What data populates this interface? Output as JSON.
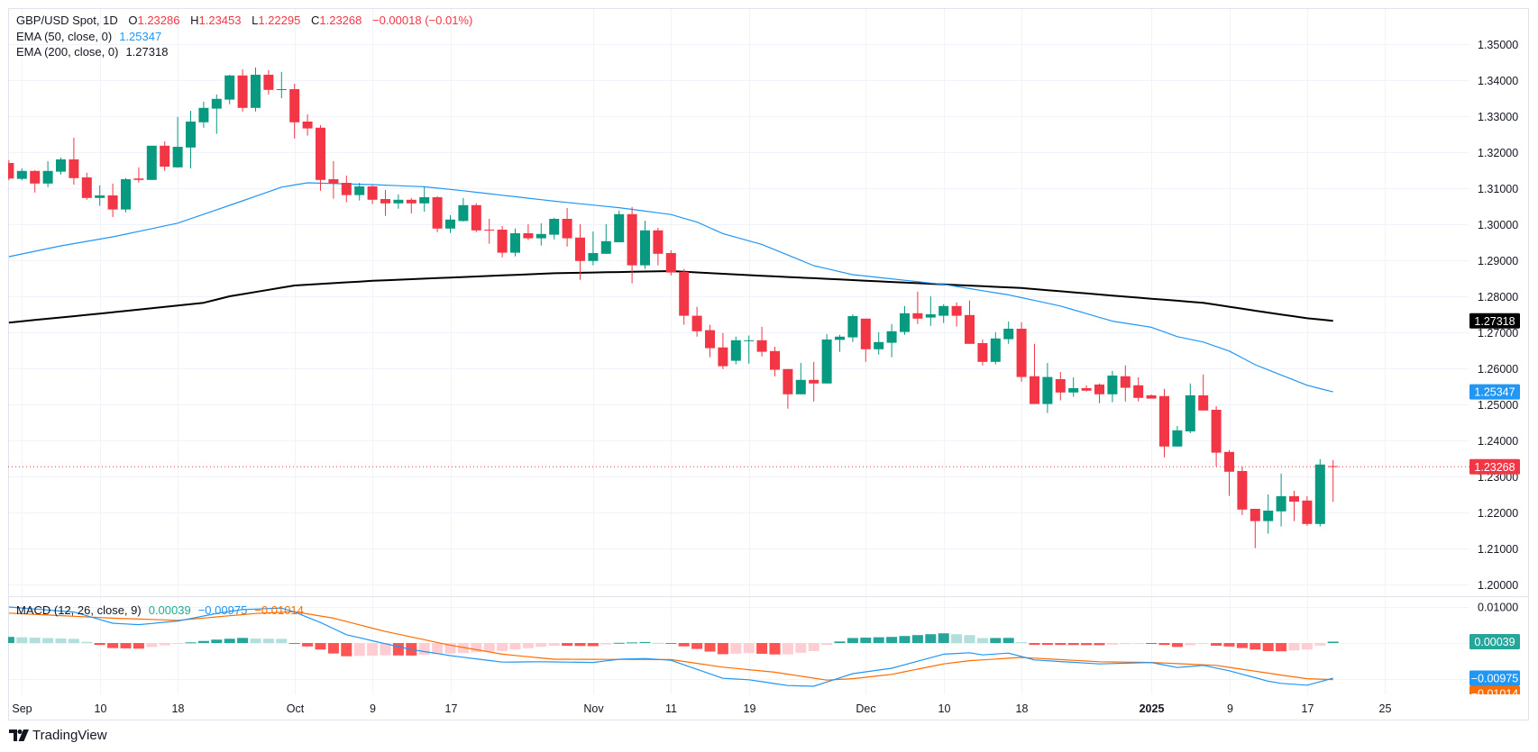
{
  "header": {
    "symbol": "GBP/USD Spot",
    "interval": "1D",
    "open_label": "O",
    "open": "1.23286",
    "high_label": "H",
    "high": "1.23453",
    "low_label": "L",
    "low": "1.22295",
    "close_label": "C",
    "close": "1.23268",
    "change": "−0.00018 (−0.01%)"
  },
  "indicators": {
    "ema50": {
      "label": "EMA (50, close, 0)",
      "value": "1.25347"
    },
    "ema200": {
      "label": "EMA (200, close, 0)",
      "value": "1.27318"
    },
    "macd": {
      "label": "MACD (12, 26, close, 9)",
      "histogram": "0.00039",
      "macd": "−0.00975",
      "signal": "−0.01014"
    }
  },
  "branding": "TradingView",
  "colors": {
    "up": "#089981",
    "down": "#F23645",
    "ema50": "#2196F3",
    "ema200": "#000000",
    "macd": "#2196F3",
    "signal": "#FF6D00",
    "hist_up_strong": "#26A69A",
    "hist_up_weak": "#B2DFDB",
    "hist_down_strong": "#FF5252",
    "hist_down_weak": "#FFCDD2",
    "grid": "#F0F3FA",
    "text": "#131722"
  },
  "chart_data": {
    "type": "candlestick",
    "title": "GBP/USD Spot, 1D",
    "price_axis": {
      "ylim": [
        1.2,
        1.35
      ],
      "ticks": [
        "1.35000",
        "1.34000",
        "1.33000",
        "1.32000",
        "1.31000",
        "1.30000",
        "1.29000",
        "1.28000",
        "1.27000",
        "1.26000",
        "1.25000",
        "1.24000",
        "1.23000",
        "1.22000",
        "1.21000",
        "1.20000"
      ]
    },
    "macd_axis": {
      "ticks": [
        "0.01000"
      ]
    },
    "time_axis": {
      "labels": [
        {
          "text": "Sep",
          "date": "2024-09-02"
        },
        {
          "text": "10",
          "date": "2024-09-10"
        },
        {
          "text": "18",
          "date": "2024-09-18"
        },
        {
          "text": "Oct",
          "date": "2024-10-01"
        },
        {
          "text": "9",
          "date": "2024-10-09"
        },
        {
          "text": "17",
          "date": "2024-10-17"
        },
        {
          "text": "Nov",
          "date": "2024-11-01"
        },
        {
          "text": "11",
          "date": "2024-11-11"
        },
        {
          "text": "19",
          "date": "2024-11-19"
        },
        {
          "text": "Dec",
          "date": "2024-12-02"
        },
        {
          "text": "10",
          "date": "2024-12-10"
        },
        {
          "text": "18",
          "date": "2024-12-18"
        },
        {
          "text": "2025",
          "date": "2025-01-01",
          "bold": true
        },
        {
          "text": "9",
          "date": "2025-01-09"
        },
        {
          "text": "17",
          "date": "2025-01-17"
        },
        {
          "text": "25",
          "date": "2025-01-25"
        }
      ]
    },
    "candles_columns": [
      "date",
      "open",
      "high",
      "low",
      "close"
    ],
    "candles": [
      [
        "2024-08-30",
        1.317,
        1.3178,
        1.3122,
        1.3127
      ],
      [
        "2024-09-02",
        1.3126,
        1.3155,
        1.3122,
        1.3148
      ],
      [
        "2024-09-03",
        1.3148,
        1.315,
        1.3088,
        1.3113
      ],
      [
        "2024-09-04",
        1.3113,
        1.3175,
        1.3103,
        1.3148
      ],
      [
        "2024-09-05",
        1.3146,
        1.3185,
        1.3138,
        1.318
      ],
      [
        "2024-09-06",
        1.318,
        1.324,
        1.311,
        1.3128
      ],
      [
        "2024-09-09",
        1.313,
        1.3143,
        1.3068,
        1.3073
      ],
      [
        "2024-09-10",
        1.3073,
        1.3108,
        1.3051,
        1.308
      ],
      [
        "2024-09-11",
        1.308,
        1.3113,
        1.302,
        1.3041
      ],
      [
        "2024-09-12",
        1.3041,
        1.3128,
        1.3033,
        1.3125
      ],
      [
        "2024-09-13",
        1.3127,
        1.3158,
        1.3116,
        1.3123
      ],
      [
        "2024-09-16",
        1.3123,
        1.3218,
        1.3123,
        1.3218
      ],
      [
        "2024-09-17",
        1.3218,
        1.323,
        1.3148,
        1.316
      ],
      [
        "2024-09-18",
        1.3158,
        1.3298,
        1.3157,
        1.3215
      ],
      [
        "2024-09-19",
        1.3213,
        1.3315,
        1.3155,
        1.3285
      ],
      [
        "2024-09-20",
        1.3283,
        1.334,
        1.3268,
        1.3323
      ],
      [
        "2024-09-23",
        1.3321,
        1.336,
        1.3251,
        1.3348
      ],
      [
        "2024-09-24",
        1.3346,
        1.3415,
        1.3333,
        1.3413
      ],
      [
        "2024-09-25",
        1.3413,
        1.343,
        1.3313,
        1.3323
      ],
      [
        "2024-09-26",
        1.3323,
        1.3435,
        1.3313,
        1.3415
      ],
      [
        "2024-09-27",
        1.3415,
        1.3428,
        1.336,
        1.3373
      ],
      [
        "2024-09-30",
        1.3373,
        1.3423,
        1.335,
        1.3375
      ],
      [
        "2024-10-01",
        1.3375,
        1.339,
        1.3238,
        1.3283
      ],
      [
        "2024-10-02",
        1.3285,
        1.3305,
        1.3246,
        1.3266
      ],
      [
        "2024-10-03",
        1.3268,
        1.3275,
        1.3093,
        1.3123
      ],
      [
        "2024-10-04",
        1.3125,
        1.3175,
        1.3071,
        1.3113
      ],
      [
        "2024-10-07",
        1.3115,
        1.3135,
        1.3061,
        1.3081
      ],
      [
        "2024-10-08",
        1.3081,
        1.3115,
        1.3066,
        1.3105
      ],
      [
        "2024-10-09",
        1.3105,
        1.3108,
        1.3056,
        1.3068
      ],
      [
        "2024-10-10",
        1.307,
        1.3095,
        1.3023,
        1.3058
      ],
      [
        "2024-10-11",
        1.3058,
        1.3083,
        1.3043,
        1.3068
      ],
      [
        "2024-10-14",
        1.3068,
        1.3073,
        1.303,
        1.3058
      ],
      [
        "2024-10-15",
        1.3058,
        1.3104,
        1.3035,
        1.3075
      ],
      [
        "2024-10-16",
        1.3075,
        1.3078,
        1.2978,
        1.2988
      ],
      [
        "2024-10-17",
        1.2988,
        1.3025,
        1.2976,
        1.3013
      ],
      [
        "2024-10-18",
        1.3009,
        1.3073,
        1.3008,
        1.3053
      ],
      [
        "2024-10-21",
        1.3053,
        1.3058,
        1.2978,
        1.2983
      ],
      [
        "2024-10-22",
        1.2985,
        1.3015,
        1.2946,
        1.2983
      ],
      [
        "2024-10-23",
        1.2985,
        1.2995,
        1.2908,
        1.2921
      ],
      [
        "2024-10-24",
        1.2921,
        1.2988,
        1.2911,
        1.2975
      ],
      [
        "2024-10-25",
        1.2975,
        1.3,
        1.2956,
        1.2961
      ],
      [
        "2024-10-28",
        1.2961,
        1.3003,
        1.2941,
        1.2973
      ],
      [
        "2024-10-29",
        1.2971,
        1.3018,
        1.2958,
        1.3015
      ],
      [
        "2024-10-30",
        1.3015,
        1.3045,
        1.2938,
        1.2961
      ],
      [
        "2024-10-31",
        1.2963,
        1.3,
        1.2846,
        1.2898
      ],
      [
        "2024-11-01",
        1.2898,
        1.298,
        1.2886,
        1.292
      ],
      [
        "2024-11-04",
        1.2918,
        1.3,
        1.2918,
        1.2953
      ],
      [
        "2024-11-05",
        1.295,
        1.3038,
        1.295,
        1.3028
      ],
      [
        "2024-11-06",
        1.3028,
        1.3048,
        1.2836,
        1.2886
      ],
      [
        "2024-11-07",
        1.2886,
        1.301,
        1.2876,
        1.2983
      ],
      [
        "2024-11-08",
        1.2983,
        1.299,
        1.2886,
        1.2918
      ],
      [
        "2024-11-11",
        1.292,
        1.2928,
        1.2858,
        1.2866
      ],
      [
        "2024-11-12",
        1.2868,
        1.2876,
        1.2721,
        1.2746
      ],
      [
        "2024-11-13",
        1.2746,
        1.2771,
        1.2688,
        1.2703
      ],
      [
        "2024-11-14",
        1.2706,
        1.2721,
        1.2631,
        1.2656
      ],
      [
        "2024-11-15",
        1.2658,
        1.2698,
        1.2598,
        1.2606
      ],
      [
        "2024-11-18",
        1.2621,
        1.2688,
        1.2611,
        1.2678
      ],
      [
        "2024-11-19",
        1.2677,
        1.2691,
        1.2613,
        1.2678
      ],
      [
        "2024-11-20",
        1.2678,
        1.2715,
        1.2633,
        1.2646
      ],
      [
        "2024-11-21",
        1.2648,
        1.266,
        1.2578,
        1.2596
      ],
      [
        "2024-11-22",
        1.2598,
        1.2598,
        1.2488,
        1.2528
      ],
      [
        "2024-11-25",
        1.2528,
        1.2615,
        1.2528,
        1.2568
      ],
      [
        "2024-11-26",
        1.2568,
        1.2618,
        1.2508,
        1.2558
      ],
      [
        "2024-11-27",
        1.2558,
        1.2695,
        1.2558,
        1.268
      ],
      [
        "2024-11-28",
        1.2679,
        1.2693,
        1.2646,
        1.2688
      ],
      [
        "2024-11-29",
        1.2686,
        1.275,
        1.2673,
        1.2745
      ],
      [
        "2024-12-02",
        1.2738,
        1.2738,
        1.2618,
        1.2653
      ],
      [
        "2024-12-03",
        1.2653,
        1.27,
        1.2638,
        1.2673
      ],
      [
        "2024-12-04",
        1.2671,
        1.2723,
        1.2631,
        1.2703
      ],
      [
        "2024-12-05",
        1.2701,
        1.2773,
        1.2693,
        1.2753
      ],
      [
        "2024-12-06",
        1.2753,
        1.2813,
        1.2723,
        1.2738
      ],
      [
        "2024-12-09",
        1.2741,
        1.28,
        1.2718,
        1.275
      ],
      [
        "2024-12-10",
        1.2746,
        1.2778,
        1.2726,
        1.2773
      ],
      [
        "2024-12-11",
        1.2773,
        1.2783,
        1.2716,
        1.2746
      ],
      [
        "2024-12-12",
        1.2748,
        1.2788,
        1.2668,
        1.2668
      ],
      [
        "2024-12-13",
        1.267,
        1.268,
        1.2608,
        1.2618
      ],
      [
        "2024-12-16",
        1.2618,
        1.27,
        1.2611,
        1.2683
      ],
      [
        "2024-12-17",
        1.2681,
        1.273,
        1.2668,
        1.271
      ],
      [
        "2024-12-18",
        1.271,
        1.2728,
        1.2563,
        1.2576
      ],
      [
        "2024-12-19",
        1.2578,
        1.2668,
        1.2501,
        1.2501
      ],
      [
        "2024-12-20",
        1.2501,
        1.2615,
        1.2476,
        1.2576
      ],
      [
        "2024-12-23",
        1.257,
        1.259,
        1.2511,
        1.2533
      ],
      [
        "2024-12-24",
        1.2533,
        1.2575,
        1.2521,
        1.2545
      ],
      [
        "2024-12-25",
        1.2545,
        1.2553,
        1.2536,
        1.2538
      ],
      [
        "2024-12-26",
        1.2555,
        1.2558,
        1.2503,
        1.2528
      ],
      [
        "2024-12-27",
        1.2528,
        1.2593,
        1.2506,
        1.258
      ],
      [
        "2024-12-30",
        1.2578,
        1.2608,
        1.2508,
        1.2546
      ],
      [
        "2024-12-31",
        1.2553,
        1.2575,
        1.2508,
        1.2518
      ],
      [
        "2025-01-01",
        1.2525,
        1.2528,
        1.2516,
        1.2516
      ],
      [
        "2025-01-02",
        1.2523,
        1.2543,
        1.2353,
        1.2383
      ],
      [
        "2025-01-03",
        1.2383,
        1.244,
        1.2383,
        1.2428
      ],
      [
        "2025-01-06",
        1.2425,
        1.2558,
        1.242,
        1.2525
      ],
      [
        "2025-01-07",
        1.2525,
        1.2583,
        1.2483,
        1.2483
      ],
      [
        "2025-01-08",
        1.2485,
        1.2495,
        1.2328,
        1.2366
      ],
      [
        "2025-01-09",
        1.2368,
        1.2373,
        1.2246,
        1.2313
      ],
      [
        "2025-01-10",
        1.2315,
        1.2328,
        1.2193,
        1.2208
      ],
      [
        "2025-01-13",
        1.221,
        1.221,
        1.2101,
        1.2176
      ],
      [
        "2025-01-14",
        1.2176,
        1.225,
        1.2141,
        1.2205
      ],
      [
        "2025-01-15",
        1.2203,
        1.2308,
        1.2161,
        1.2245
      ],
      [
        "2025-01-16",
        1.2245,
        1.226,
        1.2176,
        1.223
      ],
      [
        "2025-01-17",
        1.2233,
        1.2245,
        1.2163,
        1.2168
      ],
      [
        "2025-01-20",
        1.2168,
        1.2348,
        1.2161,
        1.2333
      ],
      [
        "2025-01-21",
        1.23286,
        1.23453,
        1.22295,
        1.23268
      ]
    ],
    "ema50": [
      [
        "2024-08-30",
        1.291
      ],
      [
        "2024-09-05",
        1.294
      ],
      [
        "2024-09-11",
        1.2965
      ],
      [
        "2024-09-18",
        1.3003
      ],
      [
        "2024-09-25",
        1.3065
      ],
      [
        "2024-09-30",
        1.3103
      ],
      [
        "2024-10-02",
        1.3115
      ],
      [
        "2024-10-09",
        1.311
      ],
      [
        "2024-10-15",
        1.3104
      ],
      [
        "2024-10-18",
        1.3093
      ],
      [
        "2024-10-29",
        1.3064
      ],
      [
        "2024-11-05",
        1.3046
      ],
      [
        "2024-11-11",
        1.3027
      ],
      [
        "2024-11-13",
        1.3006
      ],
      [
        "2024-11-15",
        1.2974
      ],
      [
        "2024-11-20",
        1.2944
      ],
      [
        "2024-11-26",
        1.2885
      ],
      [
        "2024-11-29",
        1.286
      ],
      [
        "2024-12-10",
        1.2833
      ],
      [
        "2024-12-17",
        1.2804
      ],
      [
        "2024-12-23",
        1.2773
      ],
      [
        "2024-12-27",
        1.2731
      ],
      [
        "2025-01-01",
        1.2714
      ],
      [
        "2025-01-03",
        1.2688
      ],
      [
        "2025-01-07",
        1.2673
      ],
      [
        "2025-01-09",
        1.2648
      ],
      [
        "2025-01-13",
        1.261
      ],
      [
        "2025-01-17",
        1.2553
      ],
      [
        "2025-01-21",
        1.25347
      ]
    ],
    "ema200": [
      [
        "2024-08-30",
        1.2727
      ],
      [
        "2024-09-10",
        1.2752
      ],
      [
        "2024-09-20",
        1.2782
      ],
      [
        "2024-09-24",
        1.28
      ],
      [
        "2024-10-01",
        1.283
      ],
      [
        "2024-10-09",
        1.2843
      ],
      [
        "2024-10-29",
        1.2864
      ],
      [
        "2024-11-11",
        1.287
      ],
      [
        "2024-11-20",
        1.2857
      ],
      [
        "2024-12-10",
        1.2833
      ],
      [
        "2024-12-18",
        1.2823
      ],
      [
        "2024-12-30",
        1.2799
      ],
      [
        "2025-01-07",
        1.2782
      ],
      [
        "2025-01-13",
        1.276
      ],
      [
        "2025-01-17",
        1.2739
      ],
      [
        "2025-01-21",
        1.27318
      ]
    ],
    "macd": [
      [
        "2024-08-30",
        0.01
      ],
      [
        "2024-09-06",
        0.0086
      ],
      [
        "2024-09-11",
        0.0055
      ],
      [
        "2024-09-13",
        0.0051
      ],
      [
        "2024-09-18",
        0.0061
      ],
      [
        "2024-09-23",
        0.0082
      ],
      [
        "2024-09-25",
        0.0093
      ],
      [
        "2024-09-30",
        0.0097
      ],
      [
        "2024-10-01",
        0.0086
      ],
      [
        "2024-10-03",
        0.0057
      ],
      [
        "2024-10-07",
        0.0023
      ],
      [
        "2024-10-10",
        -0.0002
      ],
      [
        "2024-10-14",
        -0.0018
      ],
      [
        "2024-10-17",
        -0.0035
      ],
      [
        "2024-10-23",
        -0.0053
      ],
      [
        "2024-10-28",
        -0.0052
      ],
      [
        "2024-11-01",
        -0.0054
      ],
      [
        "2024-11-05",
        -0.0045
      ],
      [
        "2024-11-07",
        -0.0043
      ],
      [
        "2024-11-11",
        -0.0048
      ],
      [
        "2024-11-15",
        -0.0098
      ],
      [
        "2024-11-19",
        -0.0102
      ],
      [
        "2024-11-22",
        -0.0118
      ],
      [
        "2024-11-26",
        -0.012
      ],
      [
        "2024-11-29",
        -0.0085
      ],
      [
        "2024-12-04",
        -0.007
      ],
      [
        "2024-12-10",
        -0.0031
      ],
      [
        "2024-12-12",
        -0.0027
      ],
      [
        "2024-12-13",
        -0.0033
      ],
      [
        "2024-12-17",
        -0.0028
      ],
      [
        "2024-12-19",
        -0.0047
      ],
      [
        "2024-12-26",
        -0.0058
      ],
      [
        "2025-01-01",
        -0.0054
      ],
      [
        "2025-01-03",
        -0.0068
      ],
      [
        "2025-01-07",
        -0.0062
      ],
      [
        "2025-01-09",
        -0.0077
      ],
      [
        "2025-01-14",
        -0.0106
      ],
      [
        "2025-01-15",
        -0.0112
      ],
      [
        "2025-01-17",
        -0.0117
      ],
      [
        "2025-01-21",
        -0.00975
      ]
    ],
    "signal": [
      [
        "2024-08-30",
        0.0083
      ],
      [
        "2024-09-11",
        0.0069
      ],
      [
        "2024-09-18",
        0.0063
      ],
      [
        "2024-09-26",
        0.0082
      ],
      [
        "2024-10-01",
        0.0087
      ],
      [
        "2024-10-04",
        0.0069
      ],
      [
        "2024-10-10",
        0.0032
      ],
      [
        "2024-10-17",
        -0.0006
      ],
      [
        "2024-10-23",
        -0.0031
      ],
      [
        "2024-10-29",
        -0.0045
      ],
      [
        "2024-11-11",
        -0.0046
      ],
      [
        "2024-11-15",
        -0.0067
      ],
      [
        "2024-11-21",
        -0.0081
      ],
      [
        "2024-11-27",
        -0.0103
      ],
      [
        "2024-11-29",
        -0.0099
      ],
      [
        "2024-12-04",
        -0.0087
      ],
      [
        "2024-12-10",
        -0.0058
      ],
      [
        "2024-12-12",
        -0.0049
      ],
      [
        "2024-12-18",
        -0.004
      ],
      [
        "2024-12-26",
        -0.0052
      ],
      [
        "2025-01-01",
        -0.0054
      ],
      [
        "2025-01-08",
        -0.0062
      ],
      [
        "2025-01-15",
        -0.0089
      ],
      [
        "2025-01-17",
        -0.0099
      ],
      [
        "2025-01-21",
        -0.01014
      ]
    ],
    "last_price": 1.23268,
    "grid": true
  }
}
